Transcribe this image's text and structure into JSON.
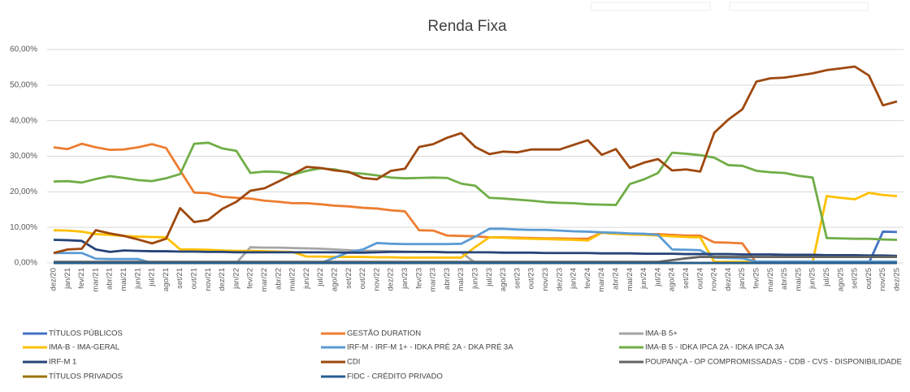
{
  "chart_data": {
    "type": "line",
    "title": "Renda Fixa",
    "categories": [
      "dez/20",
      "jan/21",
      "fev/21",
      "mar/21",
      "abr/21",
      "mai/21",
      "jun/21",
      "jul/21",
      "ago/21",
      "set/21",
      "out/21",
      "nov/21",
      "dez/21",
      "jan/22",
      "fev/22",
      "mar/22",
      "abr/22",
      "mai/22",
      "jun/22",
      "jul/22",
      "ago/22",
      "set/22",
      "out/22",
      "nov/22",
      "dez/22",
      "jan/23",
      "fev/23",
      "mar/23",
      "abr/23",
      "mai/23",
      "jun/23",
      "jul/23",
      "ago/23",
      "set/23",
      "out/23",
      "nov/23",
      "dez/23",
      "jan/24",
      "fev/24",
      "mar/24",
      "abr/24",
      "mai/24",
      "jun/24",
      "jul/24",
      "ago/24",
      "set/24",
      "out/24",
      "nov/24",
      "dez/24",
      "jan/25",
      "fev/25",
      "mar/25",
      "abr/25",
      "mai/25",
      "jun/25",
      "jul/25",
      "ago/25",
      "set/25",
      "out/25",
      "nov/25",
      "dez/25"
    ],
    "ylim": [
      0,
      60
    ],
    "yticks": [
      {
        "value": 0,
        "label": "0,00%"
      },
      {
        "value": 10,
        "label": "10,00%"
      },
      {
        "value": 20,
        "label": "20,00%"
      },
      {
        "value": 30,
        "label": "30,00%"
      },
      {
        "value": 40,
        "label": "40,00%"
      },
      {
        "value": 50,
        "label": "50,00%"
      },
      {
        "value": 60,
        "label": "60,00%"
      }
    ],
    "grid": true,
    "legend": "bottom",
    "series": [
      {
        "name": "TÍTULOS PÚBLICOS",
        "color": "#4472c4",
        "values": [
          0,
          0,
          0,
          0,
          0,
          0,
          0,
          0,
          0,
          0,
          0,
          0,
          0,
          0,
          0,
          0,
          0,
          0,
          0,
          0,
          0,
          0,
          0,
          0,
          0,
          0,
          0,
          0,
          0,
          0,
          0,
          0,
          0,
          0,
          0,
          0,
          0,
          0,
          0,
          0,
          0,
          0,
          0,
          0,
          0,
          0,
          0,
          0,
          0,
          0,
          0,
          0,
          0,
          0,
          0,
          0,
          0,
          0,
          0,
          8.8,
          8.7
        ]
      },
      {
        "name": "GESTÃO DURATION",
        "color": "#ed7d31",
        "values": [
          32.5,
          32,
          33.5,
          32.5,
          31.8,
          31.9,
          32.5,
          33.4,
          32.3,
          26,
          19.8,
          19.6,
          18.6,
          18.3,
          18.1,
          17.5,
          17.2,
          16.8,
          16.8,
          16.5,
          16.1,
          15.9,
          15.5,
          15.3,
          14.8,
          14.5,
          9.2,
          9.1,
          7.7,
          7.6,
          7.5,
          7.2,
          7.2,
          7.1,
          7,
          6.9,
          6.9,
          6.8,
          6.8,
          8.5,
          8.2,
          8.1,
          8.1,
          8.1,
          7.9,
          7.7,
          7.7,
          5.8,
          5.7,
          5.5,
          0,
          0,
          0,
          0,
          0,
          0,
          0,
          0,
          0,
          0,
          0
        ]
      },
      {
        "name": "IMA-B 5+",
        "color": "#a5a5a5",
        "values": [
          0,
          0,
          0,
          0,
          0,
          0,
          0,
          0,
          0,
          0,
          0,
          0,
          0,
          0,
          4.4,
          4.3,
          4.3,
          4.2,
          4.1,
          4,
          3.8,
          3.6,
          3.4,
          3.4,
          3.3,
          3.2,
          3.1,
          3.1,
          3,
          3,
          0,
          0,
          0,
          0,
          0,
          0,
          0,
          0,
          0,
          0,
          0,
          0,
          0,
          0,
          0,
          0,
          0,
          0,
          0,
          0,
          0,
          0,
          0,
          0,
          0,
          0,
          0,
          0,
          0,
          0,
          0
        ]
      },
      {
        "name": "IMA-B - IMA-GERAL",
        "color": "#ffc000",
        "values": [
          9.2,
          9.1,
          8.8,
          8.1,
          7.9,
          7.6,
          7.4,
          7.3,
          7.2,
          3.8,
          3.8,
          3.7,
          3.5,
          3.4,
          3.4,
          3.3,
          3.2,
          3.1,
          1.8,
          1.8,
          1.7,
          1.7,
          1.7,
          1.6,
          1.6,
          1.5,
          1.5,
          1.5,
          1.5,
          1.5,
          4.5,
          7.2,
          7.1,
          6.9,
          6.8,
          6.7,
          6.6,
          6.5,
          6.3,
          8.5,
          8.2,
          8,
          7.9,
          7.7,
          7.5,
          7.3,
          7.2,
          0.3,
          0.3,
          0.3,
          0.3,
          0.3,
          0.3,
          0.3,
          0.3,
          18.8,
          18.3,
          17.9,
          19.7,
          19.1,
          18.8
        ]
      },
      {
        "name": "IRF-M - IRF-M 1+ -   IDKA PRÉ 2A - DKA PRÉ 3A",
        "color": "#5b9bd5",
        "values": [
          2.8,
          2.8,
          2.8,
          1.2,
          1.1,
          1.1,
          1.1,
          0,
          0,
          0,
          0,
          0,
          0,
          0,
          0,
          0,
          0,
          0,
          0,
          0,
          1.5,
          3,
          3.8,
          5.6,
          5.4,
          5.3,
          5.3,
          5.3,
          5.3,
          5.4,
          7.4,
          9.6,
          9.6,
          9.4,
          9.3,
          9.3,
          9.1,
          8.9,
          8.8,
          8.6,
          8.5,
          8.3,
          8.2,
          7.9,
          3.8,
          3.7,
          3.6,
          1.5,
          1.4,
          1.3,
          0.4,
          0.4,
          0.4,
          0.4,
          0.4,
          0.4,
          0.4,
          0.4,
          0.4,
          0.4,
          0.4
        ]
      },
      {
        "name": "IMA-B 5 - IDKA IPCA 2A - IDKA IPCA 3A",
        "color": "#70ad47",
        "values": [
          22.9,
          23,
          22.6,
          23.6,
          24.4,
          23.9,
          23.3,
          23,
          23.8,
          25,
          33.5,
          33.8,
          32.2,
          31.5,
          25.3,
          25.7,
          25.6,
          24.8,
          25.9,
          26.6,
          26.3,
          25.4,
          25.1,
          24.6,
          24,
          23.8,
          23.9,
          24,
          23.9,
          22.3,
          21.7,
          18.3,
          18.1,
          17.8,
          17.5,
          17.1,
          16.9,
          16.8,
          16.5,
          16.4,
          16.3,
          22.2,
          23.5,
          25.3,
          31,
          30.7,
          30.3,
          29.6,
          27.5,
          27.3,
          25.9,
          25.5,
          25.3,
          24.5,
          24,
          7,
          6.9,
          6.8,
          6.8,
          6.6,
          6.5
        ]
      },
      {
        "name": "IRF-M 1",
        "color": "#264478",
        "values": [
          6.5,
          6.4,
          6.2,
          3.8,
          3.1,
          3.5,
          3.4,
          3.3,
          3.3,
          3.2,
          3.2,
          3.1,
          3.1,
          3,
          3,
          3,
          3,
          3,
          3,
          3,
          3,
          2.9,
          2.9,
          3,
          3.1,
          3.1,
          3.1,
          3.1,
          3,
          3,
          3,
          3,
          2.9,
          2.9,
          2.9,
          2.8,
          2.8,
          2.8,
          2.8,
          2.7,
          2.7,
          2.7,
          2.6,
          2.6,
          2.6,
          2.5,
          2.5,
          2.5,
          2.5,
          2.4,
          2.4,
          2.4,
          2.3,
          2.3,
          2.3,
          2.2,
          2.2,
          2.2,
          2.1,
          2.1,
          2
        ]
      },
      {
        "name": "CDI",
        "color": "#9e480e",
        "values": [
          2.8,
          3.8,
          4,
          9.2,
          8.3,
          7.6,
          6.6,
          5.5,
          6.8,
          15.4,
          11.5,
          12.1,
          15.2,
          17.2,
          20.3,
          21,
          22.9,
          24.9,
          27,
          26.7,
          26,
          25.6,
          23.9,
          23.5,
          25.9,
          26.5,
          32.6,
          33.4,
          35.2,
          36.5,
          32.6,
          30.6,
          31.3,
          31.1,
          31.9,
          31.9,
          31.9,
          33.2,
          34.5,
          30.4,
          32,
          26.7,
          28.2,
          29.2,
          26,
          26.3,
          25.7,
          36.6,
          40.3,
          43.2,
          51,
          51.9,
          52.1,
          52.7,
          53.3,
          54.2,
          54.7,
          55.2,
          52.7,
          44.3,
          45.4
        ]
      },
      {
        "name": "POUPANÇA - OP COMPROMISSADAS - CDB - CVS - DISPONIBILIDADE",
        "color": "#636363",
        "values": [
          0.3,
          0.3,
          0.3,
          0.3,
          0.3,
          0.3,
          0.3,
          0.3,
          0.3,
          0.3,
          0.3,
          0.3,
          0.3,
          0.3,
          0.3,
          0.3,
          0.3,
          0.3,
          0.3,
          0.3,
          0.3,
          0.3,
          0.3,
          0.3,
          0.3,
          0.3,
          0.3,
          0.3,
          0.3,
          0.3,
          0.3,
          0.3,
          0.3,
          0.3,
          0.3,
          0.3,
          0.3,
          0.3,
          0.3,
          0.3,
          0.3,
          0.3,
          0.3,
          0.3,
          0.8,
          1.3,
          1.7,
          1.7,
          1.7,
          1.7,
          1.7,
          1.7,
          1.7,
          1.7,
          1.7,
          1.7,
          1.7,
          1.7,
          1.7,
          1.7,
          1.7
        ]
      },
      {
        "name": "TÍTULOS PRIVADOS",
        "color": "#997300",
        "values": [
          0,
          0,
          0,
          0,
          0,
          0,
          0,
          0,
          0,
          0,
          0,
          0,
          0,
          0,
          0,
          0,
          0,
          0,
          0,
          0,
          0,
          0,
          0,
          0,
          0,
          0,
          0,
          0,
          0,
          0,
          0,
          0,
          0,
          0,
          0,
          0,
          0,
          0,
          0,
          0,
          0,
          0,
          0,
          0,
          0,
          0,
          0,
          0,
          0,
          0,
          0,
          0,
          0,
          0,
          0,
          0,
          0,
          0,
          0,
          0,
          0
        ]
      },
      {
        "name": "FIDC - CRÉDITO PRIVADO",
        "color": "#255e91",
        "values": [
          0,
          0,
          0,
          0,
          0,
          0,
          0,
          0,
          0,
          0,
          0,
          0,
          0,
          0,
          0,
          0,
          0,
          0,
          0,
          0,
          0,
          0,
          0,
          0,
          0,
          0,
          0,
          0,
          0,
          0,
          0,
          0,
          0,
          0,
          0,
          0,
          0,
          0,
          0,
          0,
          0,
          0,
          0,
          0,
          0,
          0,
          0,
          0,
          0,
          0,
          0,
          0,
          0,
          0,
          0,
          0,
          0,
          0,
          0,
          0,
          0
        ]
      }
    ]
  }
}
